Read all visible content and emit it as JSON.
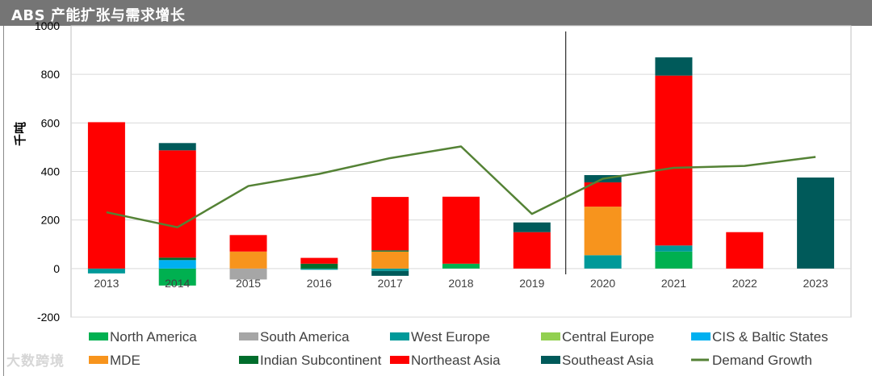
{
  "header": {
    "title": "ABS 产能扩张与需求增长"
  },
  "watermark": "大数跨境",
  "chart_data": {
    "type": "bar",
    "stacked": true,
    "title": "ABS 产能扩张与需求增长",
    "xlabel": "",
    "ylabel": "千吨",
    "ylim": [
      -200,
      1000
    ],
    "yticks": [
      -200,
      0,
      200,
      400,
      600,
      800,
      1000
    ],
    "grid": true,
    "legend_position": "bottom",
    "categories": [
      "2013",
      "2014",
      "2015",
      "2016",
      "2017",
      "2018",
      "2019",
      "2020",
      "2021",
      "2022",
      "2023"
    ],
    "divider_after_category": "2019",
    "series": [
      {
        "name": "North America",
        "color": "#00b050",
        "values": [
          0,
          -70,
          0,
          0,
          0,
          20,
          0,
          0,
          70,
          0,
          0
        ]
      },
      {
        "name": "South America",
        "color": "#a6a6a6",
        "values": [
          0,
          0,
          0,
          0,
          0,
          0,
          0,
          0,
          0,
          0,
          0
        ]
      },
      {
        "name": "West Europe",
        "color": "#009999",
        "values": [
          -20,
          0,
          0,
          -5,
          -10,
          0,
          0,
          55,
          25,
          0,
          0
        ]
      },
      {
        "name": "Central Europe",
        "color": "#92d050",
        "values": [
          0,
          0,
          0,
          0,
          0,
          0,
          0,
          0,
          0,
          0,
          0
        ]
      },
      {
        "name": "CIS & Baltic States",
        "color": "#00b0f0",
        "values": [
          0,
          35,
          0,
          0,
          0,
          0,
          0,
          0,
          0,
          0,
          0
        ]
      },
      {
        "name": "MDE",
        "color": "#f7941d",
        "values": [
          0,
          0,
          70,
          0,
          70,
          0,
          0,
          200,
          0,
          0,
          0
        ]
      },
      {
        "name": "Indian Subcontinent",
        "color": "#006d2c",
        "values": [
          0,
          10,
          0,
          20,
          5,
          0,
          0,
          0,
          0,
          0,
          0
        ]
      },
      {
        "name": "Northeast Asia",
        "color": "#ff0000",
        "values": [
          603,
          442,
          68,
          24,
          220,
          276,
          150,
          100,
          700,
          150,
          0
        ]
      },
      {
        "name": "Southeast Asia",
        "color": "#005a5a",
        "values": [
          0,
          30,
          0,
          0,
          -20,
          0,
          40,
          30,
          75,
          0,
          375
        ]
      }
    ],
    "negative_series_extra": {
      "South America": [
        0,
        0,
        -45,
        0,
        0,
        0,
        0,
        0,
        0,
        0,
        0
      ]
    },
    "line_series": {
      "name": "Demand Growth",
      "color": "#548235",
      "values": [
        232,
        170,
        340,
        390,
        455,
        503,
        225,
        370,
        415,
        423,
        460
      ]
    },
    "legend": [
      "North America",
      "South America",
      "West Europe",
      "Central Europe",
      "CIS & Baltic States",
      "MDE",
      "Indian Subcontinent",
      "Northeast Asia",
      "Southeast Asia",
      "Demand Growth"
    ]
  }
}
